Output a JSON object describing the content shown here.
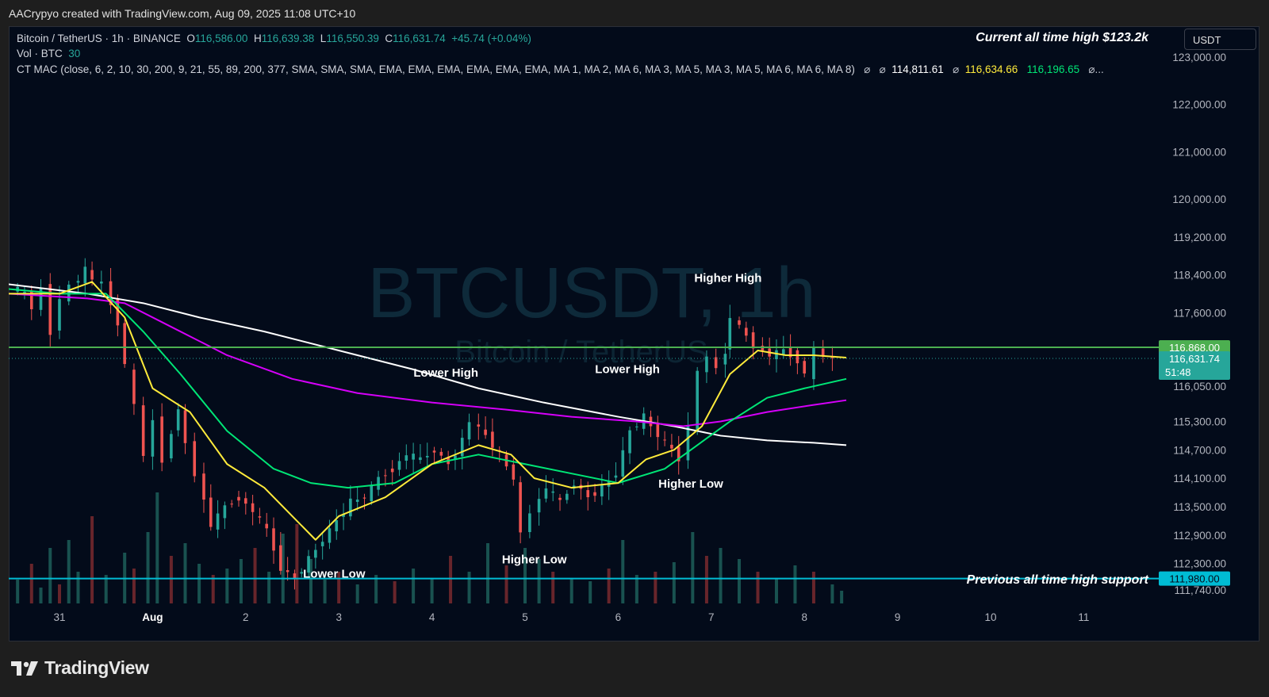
{
  "attribution": "AACrypyo created with TradingView.com, Aug 09, 2025 11:08 UTC+10",
  "legend": {
    "symbol": "Bitcoin / TetherUS · 1h · BINANCE",
    "o_label": "O",
    "o_value": "116,586.00",
    "h_label": "H",
    "h_value": "116,639.38",
    "l_label": "L",
    "l_value": "116,550.39",
    "c_label": "C",
    "c_value": "116,631.74",
    "change": "+45.74 (+0.04%)",
    "vol_label": "Vol · BTC",
    "vol_value": "30",
    "indicator": "CT MAC (close, 6, 2, 10, 30, 200, 9, 21, 55, 89, 200, 377, SMA, SMA, SMA, EMA, EMA, EMA, EMA, EMA, EMA, MA 1, MA 2, MA 6, MA 3, MA 5, MA 3, MA 5, MA 6, MA 6, MA 8)",
    "ind_sym1": "⌀",
    "ind_sym2": "⌀",
    "ind_v1": "114,811.61",
    "ind_sym3": "⌀",
    "ind_v2": "116,634.66",
    "ind_v3": "116,196.65",
    "ind_tail": "⌀..."
  },
  "currency": "USDT",
  "logo_text": "TradingView",
  "colors": {
    "up": "#26a69a",
    "down": "#ef5350",
    "background": "#030b1a",
    "ema_yellow": "#ffeb3b",
    "ema_green": "#00e676",
    "ma_magenta": "#d500f9",
    "ma_white": "#ffffff",
    "resistance": "#4caf50",
    "support": "#00bcd4"
  },
  "chart_data": {
    "type": "candlestick",
    "symbol": "BTCUSDT",
    "interval": "1h",
    "watermark": "BTCUSDT, 1h",
    "watermark_sub": "Bitcoin / TetherUS",
    "x_ticks": [
      "31",
      "Aug",
      "2",
      "3",
      "4",
      "5",
      "6",
      "7",
      "8",
      "9",
      "10",
      "11"
    ],
    "y_ticks": [
      "123,000.00",
      "122,000.00",
      "121,000.00",
      "120,000.00",
      "119,200.00",
      "118,400.00",
      "117,600.00",
      "116,050.00",
      "115,300.00",
      "114,700.00",
      "114,100.00",
      "113,500.00",
      "112,900.00",
      "112,300.00",
      "111,740.00"
    ],
    "y_tick_values": [
      123000,
      122000,
      121000,
      120000,
      119200,
      118400,
      117600,
      116050,
      115300,
      114700,
      114100,
      113500,
      112900,
      112300,
      111740
    ],
    "ylim": [
      111600,
      123100
    ],
    "price_points": [
      [
        -0.45,
        118150
      ],
      [
        -0.3,
        118000
      ],
      [
        -0.2,
        117700
      ],
      [
        -0.1,
        118100
      ],
      [
        0,
        117200
      ],
      [
        0.1,
        117900
      ],
      [
        0.2,
        118150
      ],
      [
        0.35,
        118500
      ],
      [
        0.45,
        118300
      ],
      [
        0.55,
        118200
      ],
      [
        0.7,
        117400
      ],
      [
        0.8,
        116500
      ],
      [
        0.9,
        115600
      ],
      [
        1.0,
        114600
      ],
      [
        1.1,
        115300
      ],
      [
        1.2,
        114500
      ],
      [
        1.35,
        115600
      ],
      [
        1.45,
        114800
      ],
      [
        1.55,
        114200
      ],
      [
        1.7,
        113100
      ],
      [
        1.85,
        113500
      ],
      [
        2.0,
        113700
      ],
      [
        2.15,
        113400
      ],
      [
        2.3,
        113000
      ],
      [
        2.45,
        112200
      ],
      [
        2.6,
        111980
      ],
      [
        2.75,
        112400
      ],
      [
        2.9,
        112800
      ],
      [
        3.05,
        113200
      ],
      [
        3.2,
        113600
      ],
      [
        3.35,
        113700
      ],
      [
        3.5,
        114100
      ],
      [
        3.65,
        114300
      ],
      [
        3.8,
        114600
      ],
      [
        3.95,
        114500
      ],
      [
        4.1,
        114700
      ],
      [
        4.25,
        114400
      ],
      [
        4.4,
        114900
      ],
      [
        4.5,
        115300
      ],
      [
        4.65,
        115000
      ],
      [
        4.8,
        114600
      ],
      [
        4.95,
        114100
      ],
      [
        5.05,
        112900
      ],
      [
        5.15,
        113400
      ],
      [
        5.3,
        113900
      ],
      [
        5.45,
        113600
      ],
      [
        5.6,
        114000
      ],
      [
        5.75,
        113700
      ],
      [
        5.9,
        113900
      ],
      [
        6.05,
        114200
      ],
      [
        6.2,
        115100
      ],
      [
        6.35,
        115400
      ],
      [
        6.5,
        115000
      ],
      [
        6.65,
        114700
      ],
      [
        6.75,
        114500
      ],
      [
        6.85,
        115200
      ],
      [
        6.95,
        116300
      ],
      [
        7.05,
        116700
      ],
      [
        7.15,
        116400
      ],
      [
        7.2,
        116800
      ],
      [
        7.3,
        117500
      ],
      [
        7.45,
        117100
      ],
      [
        7.55,
        116900
      ],
      [
        7.7,
        116700
      ],
      [
        7.85,
        116800
      ],
      [
        8.0,
        116600
      ],
      [
        8.1,
        116300
      ],
      [
        8.2,
        116800
      ],
      [
        8.3,
        116700
      ],
      [
        8.4,
        116620
      ]
    ],
    "volumes": [
      [
        -0.45,
        15
      ],
      [
        -0.3,
        25
      ],
      [
        -0.2,
        10
      ],
      [
        -0.1,
        35
      ],
      [
        0,
        12
      ],
      [
        0.1,
        40
      ],
      [
        0.2,
        20
      ],
      [
        0.35,
        55
      ],
      [
        0.5,
        18
      ],
      [
        0.7,
        32
      ],
      [
        0.8,
        22
      ],
      [
        0.95,
        45
      ],
      [
        1.05,
        70
      ],
      [
        1.2,
        30
      ],
      [
        1.35,
        38
      ],
      [
        1.5,
        25
      ],
      [
        1.65,
        18
      ],
      [
        1.8,
        22
      ],
      [
        1.95,
        28
      ],
      [
        2.1,
        35
      ],
      [
        2.25,
        20
      ],
      [
        2.4,
        44
      ],
      [
        2.55,
        50
      ],
      [
        2.7,
        28
      ],
      [
        2.85,
        15
      ],
      [
        3.0,
        20
      ],
      [
        3.2,
        12
      ],
      [
        3.4,
        18
      ],
      [
        3.6,
        14
      ],
      [
        3.8,
        22
      ],
      [
        4.0,
        16
      ],
      [
        4.2,
        30
      ],
      [
        4.4,
        20
      ],
      [
        4.6,
        38
      ],
      [
        4.8,
        24
      ],
      [
        5.0,
        35
      ],
      [
        5.15,
        28
      ],
      [
        5.3,
        20
      ],
      [
        5.5,
        16
      ],
      [
        5.7,
        14
      ],
      [
        5.9,
        22
      ],
      [
        6.05,
        40
      ],
      [
        6.2,
        18
      ],
      [
        6.4,
        20
      ],
      [
        6.6,
        26
      ],
      [
        6.8,
        45
      ],
      [
        6.95,
        30
      ],
      [
        7.1,
        35
      ],
      [
        7.3,
        28
      ],
      [
        7.5,
        20
      ],
      [
        7.7,
        16
      ],
      [
        7.9,
        24
      ],
      [
        8.1,
        20
      ],
      [
        8.3,
        12
      ],
      [
        8.4,
        8
      ]
    ],
    "ema_yellow": [
      [
        -0.55,
        118000
      ],
      [
        0.0,
        118000
      ],
      [
        0.35,
        118250
      ],
      [
        0.7,
        117500
      ],
      [
        1.0,
        116000
      ],
      [
        1.4,
        115500
      ],
      [
        1.8,
        114400
      ],
      [
        2.2,
        113900
      ],
      [
        2.5,
        113300
      ],
      [
        2.75,
        112800
      ],
      [
        3.0,
        113300
      ],
      [
        3.5,
        113700
      ],
      [
        4.0,
        114400
      ],
      [
        4.5,
        114800
      ],
      [
        4.85,
        114600
      ],
      [
        5.1,
        114100
      ],
      [
        5.5,
        113900
      ],
      [
        6.0,
        114000
      ],
      [
        6.3,
        114500
      ],
      [
        6.6,
        114700
      ],
      [
        6.9,
        115200
      ],
      [
        7.2,
        116300
      ],
      [
        7.5,
        116800
      ],
      [
        7.8,
        116700
      ],
      [
        8.1,
        116700
      ],
      [
        8.45,
        116650
      ]
    ],
    "ema_green": [
      [
        -0.55,
        118100
      ],
      [
        0.0,
        118000
      ],
      [
        0.5,
        118000
      ],
      [
        0.9,
        117200
      ],
      [
        1.3,
        116300
      ],
      [
        1.8,
        115100
      ],
      [
        2.3,
        114300
      ],
      [
        2.7,
        114000
      ],
      [
        3.1,
        113900
      ],
      [
        3.6,
        114000
      ],
      [
        4.0,
        114400
      ],
      [
        4.5,
        114600
      ],
      [
        5.0,
        114400
      ],
      [
        5.5,
        114200
      ],
      [
        6.0,
        114000
      ],
      [
        6.5,
        114300
      ],
      [
        6.85,
        114800
      ],
      [
        7.2,
        115300
      ],
      [
        7.6,
        115800
      ],
      [
        8.0,
        116000
      ],
      [
        8.45,
        116200
      ]
    ],
    "ma_magenta": [
      [
        -0.55,
        118000
      ],
      [
        0.3,
        117900
      ],
      [
        0.7,
        117800
      ],
      [
        1.2,
        117300
      ],
      [
        1.8,
        116700
      ],
      [
        2.5,
        116200
      ],
      [
        3.2,
        115900
      ],
      [
        4.0,
        115700
      ],
      [
        4.8,
        115550
      ],
      [
        5.5,
        115400
      ],
      [
        6.2,
        115300
      ],
      [
        6.7,
        115200
      ],
      [
        7.1,
        115300
      ],
      [
        7.6,
        115500
      ],
      [
        8.1,
        115650
      ],
      [
        8.45,
        115750
      ]
    ],
    "ma_white": [
      [
        -0.55,
        118200
      ],
      [
        0.3,
        118000
      ],
      [
        0.9,
        117800
      ],
      [
        1.5,
        117500
      ],
      [
        2.2,
        117200
      ],
      [
        3.0,
        116800
      ],
      [
        3.8,
        116400
      ],
      [
        4.5,
        116000
      ],
      [
        5.2,
        115700
      ],
      [
        6.0,
        115400
      ],
      [
        6.6,
        115200
      ],
      [
        7.1,
        115000
      ],
      [
        7.6,
        114900
      ],
      [
        8.1,
        114850
      ],
      [
        8.45,
        114800
      ]
    ],
    "levels": [
      {
        "price": 116868,
        "label": "116,868.00",
        "color": "#4caf50",
        "text_color": "#ffffff"
      },
      {
        "price": 111980,
        "label": "111,980.00",
        "color": "#00bcd4",
        "text_color": "#030b1a"
      }
    ],
    "current_price": {
      "price": 116631.74,
      "label": "116,631.74",
      "countdown": "51:48"
    },
    "annotations": [
      {
        "text": "Higher High",
        "x": 7.18,
        "y": 118250
      },
      {
        "text": "Lower High",
        "x": 4.15,
        "y": 116250
      },
      {
        "text": "Lower High",
        "x": 6.1,
        "y": 116320
      },
      {
        "text": "Higher Low",
        "x": 6.78,
        "y": 113900
      },
      {
        "text": "Higher Low",
        "x": 5.1,
        "y": 112300
      },
      {
        "text": "Lower Low",
        "x": 2.95,
        "y": 112000
      }
    ],
    "ath_label": "Current all time high $123.2k",
    "support_label": "Previous all time high support"
  }
}
